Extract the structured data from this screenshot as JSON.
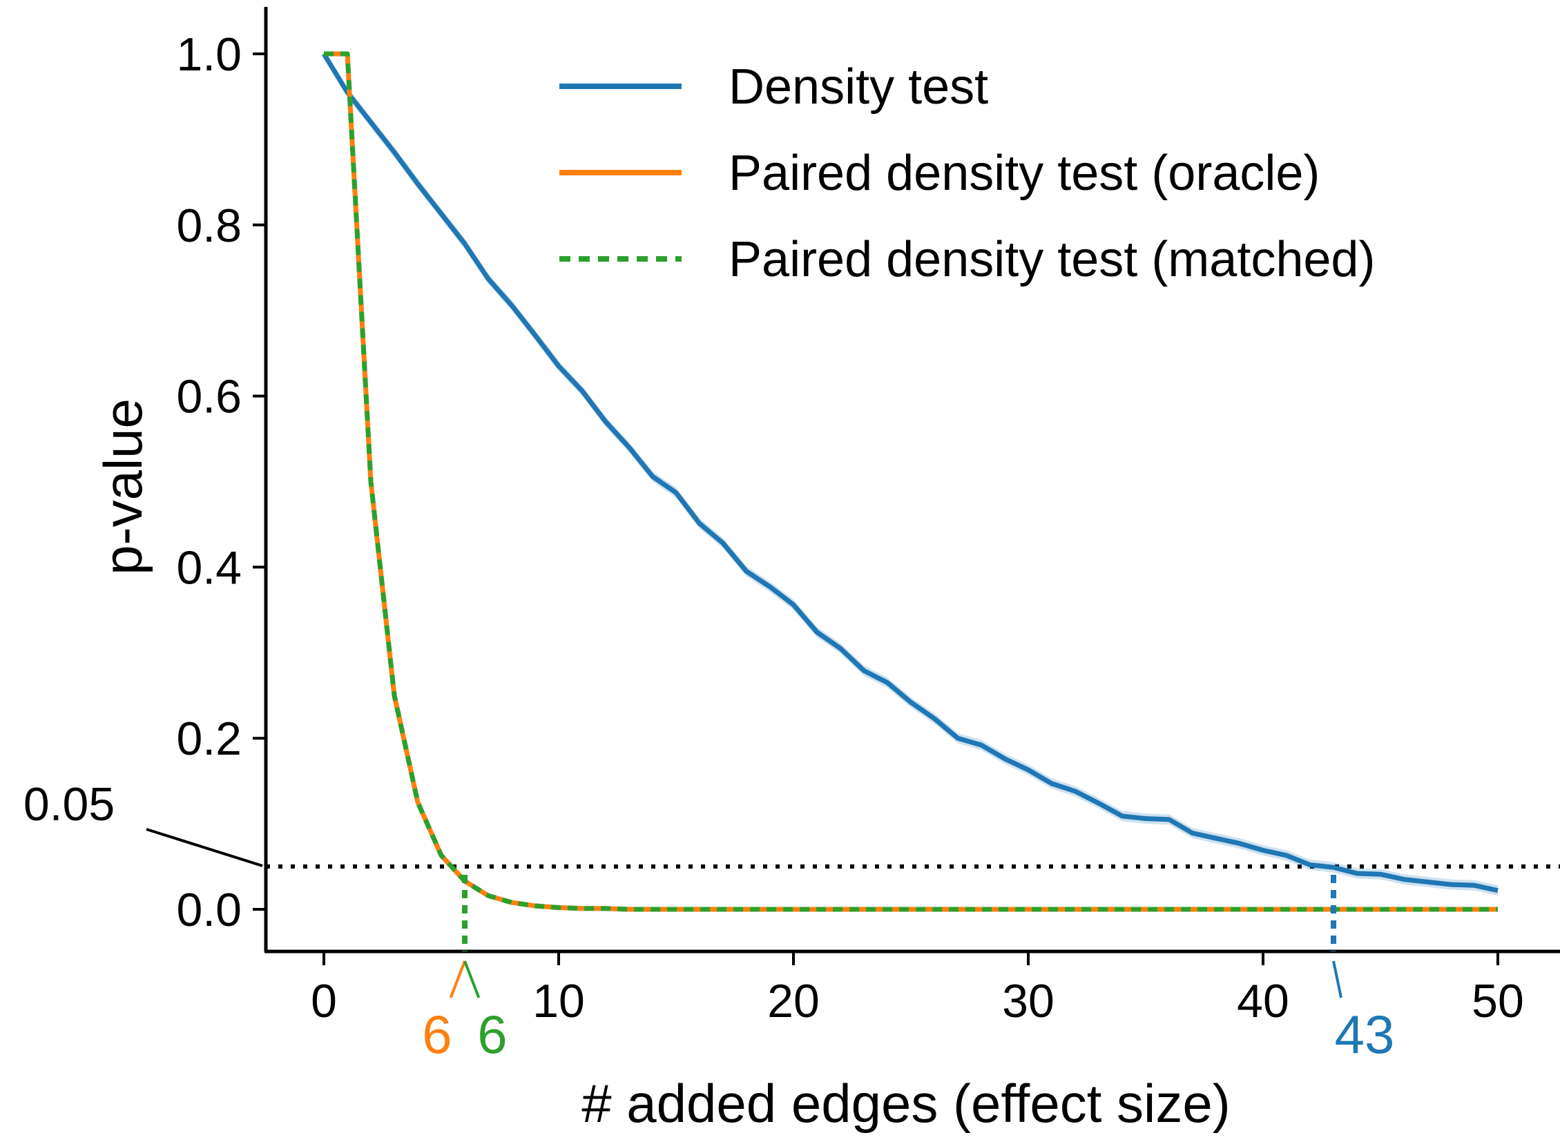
{
  "chart_data": {
    "type": "line",
    "xlabel": "# added edges (effect size)",
    "ylabel": "p-value",
    "xlim": [
      -2.5,
      52.5
    ],
    "ylim": [
      -0.048,
      1.05
    ],
    "x_ticks": [
      "0",
      "10",
      "20",
      "30",
      "40",
      "50"
    ],
    "y_ticks": [
      "0.0",
      "0.2",
      "0.4",
      "0.6",
      "0.8",
      "1.0"
    ],
    "grid": false,
    "legend_position": "top-right",
    "threshold": {
      "value": 0.05,
      "label": "0.05"
    },
    "colors": {
      "density": "#1f77b4",
      "oracle": "#ff7f0e",
      "matched": "#2ca02c",
      "threshold": "#000000"
    },
    "x": [
      0,
      1,
      2,
      3,
      4,
      5,
      6,
      7,
      8,
      9,
      10,
      11,
      12,
      13,
      14,
      15,
      16,
      17,
      18,
      19,
      20,
      21,
      22,
      23,
      24,
      25,
      26,
      27,
      28,
      29,
      30,
      31,
      32,
      33,
      34,
      35,
      36,
      37,
      38,
      39,
      40,
      41,
      42,
      43,
      44,
      45,
      46,
      47,
      48,
      49,
      50
    ],
    "series": [
      {
        "name": "Density test",
        "line_style": "solid",
        "values": [
          1.0,
          0.955,
          0.92,
          0.885,
          0.848,
          0.813,
          0.778,
          0.737,
          0.706,
          0.671,
          0.635,
          0.606,
          0.57,
          0.54,
          0.506,
          0.487,
          0.451,
          0.428,
          0.395,
          0.377,
          0.356,
          0.324,
          0.305,
          0.279,
          0.265,
          0.242,
          0.223,
          0.2,
          0.192,
          0.176,
          0.163,
          0.147,
          0.138,
          0.124,
          0.109,
          0.106,
          0.105,
          0.089,
          0.083,
          0.077,
          0.069,
          0.063,
          0.052,
          0.049,
          0.042,
          0.041,
          0.035,
          0.032,
          0.029,
          0.028,
          0.022
        ]
      },
      {
        "name": "Paired density test (oracle)",
        "line_style": "solid",
        "values": [
          1.0,
          1.0,
          0.5,
          0.25,
          0.125,
          0.063,
          0.033,
          0.016,
          0.008,
          0.004,
          0.002,
          0.001,
          0.001,
          0,
          0,
          0,
          0,
          0,
          0,
          0,
          0,
          0,
          0,
          0,
          0,
          0,
          0,
          0,
          0,
          0,
          0,
          0,
          0,
          0,
          0,
          0,
          0,
          0,
          0,
          0,
          0,
          0,
          0,
          0,
          0,
          0,
          0,
          0,
          0,
          0,
          0
        ]
      },
      {
        "name": "Paired density test (matched)",
        "line_style": "dotted",
        "values": [
          1.0,
          1.0,
          0.5,
          0.25,
          0.125,
          0.063,
          0.033,
          0.016,
          0.008,
          0.004,
          0.002,
          0.001,
          0.001,
          0,
          0,
          0,
          0,
          0,
          0,
          0,
          0,
          0,
          0,
          0,
          0,
          0,
          0,
          0,
          0,
          0,
          0,
          0,
          0,
          0,
          0,
          0,
          0,
          0,
          0,
          0,
          0,
          0,
          0,
          0,
          0,
          0,
          0,
          0,
          0,
          0,
          0
        ]
      }
    ],
    "crossings": [
      {
        "series": "Paired density test (oracle)",
        "x": 6,
        "label": "6"
      },
      {
        "series": "Paired density test (matched)",
        "x": 6,
        "label": "6"
      },
      {
        "series": "Density test",
        "x": 43,
        "label": "43"
      }
    ]
  }
}
